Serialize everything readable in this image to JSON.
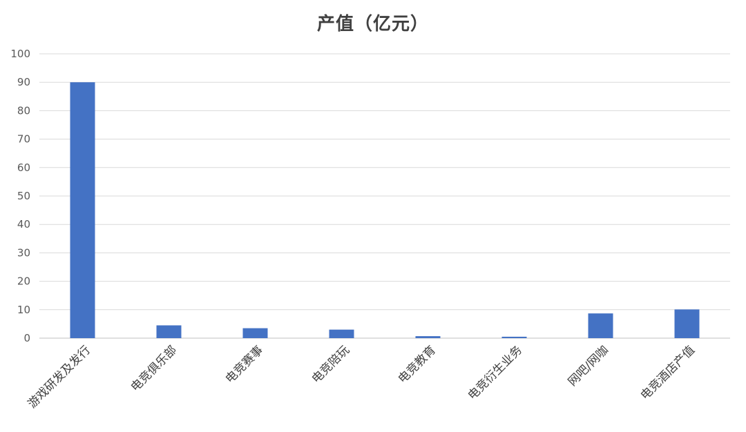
{
  "chart_data": {
    "type": "bar",
    "title": "产值（亿元）",
    "categories": [
      "游戏研发及发行",
      "电竞俱乐部",
      "电竞赛事",
      "电竞陪玩",
      "电竞教育",
      "电竞衍生业务",
      "网吧/网咖",
      "电竞酒店产值"
    ],
    "values": [
      90,
      4.5,
      3.5,
      3,
      0.7,
      0.5,
      8.7,
      10.1
    ],
    "ylim": [
      0,
      100
    ],
    "yticks": [
      0,
      10,
      20,
      30,
      40,
      50,
      60,
      70,
      80,
      90,
      100
    ],
    "xlabel": "",
    "ylabel": "",
    "grid": true,
    "legend": "none",
    "colors": {
      "bar": "#4472C4",
      "grid": "#D9D9D9",
      "axis": "#BFBFBF"
    }
  }
}
